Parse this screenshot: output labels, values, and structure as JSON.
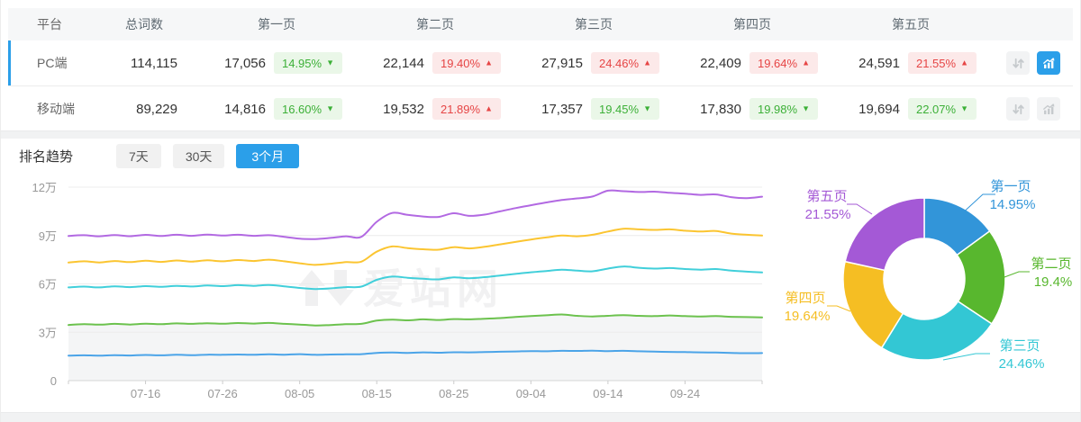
{
  "table": {
    "headers": [
      "平台",
      "总词数",
      "第一页",
      "第二页",
      "第三页",
      "第四页",
      "第五页"
    ],
    "rows": [
      {
        "platform": "PC端",
        "total": "114,115",
        "selected": true,
        "pages": [
          {
            "value": "17,056",
            "pct": "14.95%",
            "trend": "down",
            "tone": "green"
          },
          {
            "value": "22,144",
            "pct": "19.40%",
            "trend": "up",
            "tone": "red"
          },
          {
            "value": "27,915",
            "pct": "24.46%",
            "trend": "up",
            "tone": "red"
          },
          {
            "value": "22,409",
            "pct": "19.64%",
            "trend": "up",
            "tone": "red"
          },
          {
            "value": "24,591",
            "pct": "21.55%",
            "trend": "up",
            "tone": "red"
          }
        ],
        "actions": [
          {
            "icon": "sort-arrows-icon",
            "active": false
          },
          {
            "icon": "bar-chart-icon",
            "active": true
          }
        ]
      },
      {
        "platform": "移动端",
        "total": "89,229",
        "selected": false,
        "pages": [
          {
            "value": "14,816",
            "pct": "16.60%",
            "trend": "down",
            "tone": "green"
          },
          {
            "value": "19,532",
            "pct": "21.89%",
            "trend": "up",
            "tone": "red"
          },
          {
            "value": "17,357",
            "pct": "19.45%",
            "trend": "down",
            "tone": "green"
          },
          {
            "value": "17,830",
            "pct": "19.98%",
            "trend": "down",
            "tone": "green"
          },
          {
            "value": "19,694",
            "pct": "22.07%",
            "trend": "down",
            "tone": "green"
          }
        ],
        "actions": [
          {
            "icon": "sort-arrows-icon",
            "active": false
          },
          {
            "icon": "bar-chart-icon",
            "active": false
          }
        ]
      }
    ]
  },
  "trend": {
    "title": "排名趋势",
    "tabs": [
      {
        "label": "7天",
        "active": false
      },
      {
        "label": "30天",
        "active": false
      },
      {
        "label": "3个月",
        "active": true
      }
    ]
  },
  "watermark": "爱站网",
  "colors": {
    "accent_blue": "#2b9fe9",
    "badge_green": "#3cb037",
    "badge_green_bg": "#eaf7e8",
    "badge_red": "#e64545",
    "badge_red_bg": "#fce9e9",
    "grid_line": "#ececec",
    "axis_line": "#d5d5d5",
    "axis_text": "#999999"
  },
  "chart_data": [
    {
      "type": "line",
      "title": "排名趋势（3个月）",
      "unit": "万",
      "stacked": true,
      "note": "values are cumulative stacked totals, in units of 万 (10,000 keywords)",
      "x_span_days": 90,
      "point_interval_days": 2,
      "x_ticks": [
        {
          "label": "07-16",
          "day": 10
        },
        {
          "label": "07-26",
          "day": 20
        },
        {
          "label": "08-05",
          "day": 30
        },
        {
          "label": "08-15",
          "day": 40
        },
        {
          "label": "08-25",
          "day": 50
        },
        {
          "label": "09-04",
          "day": 60
        },
        {
          "label": "09-14",
          "day": 70
        },
        {
          "label": "09-24",
          "day": 80
        }
      ],
      "y_ticks": [
        {
          "label": "0",
          "value": 0
        },
        {
          "label": "3万",
          "value": 3
        },
        {
          "label": "6万",
          "value": 6
        },
        {
          "label": "9万",
          "value": 9
        },
        {
          "label": "12万",
          "value": 12
        }
      ],
      "y_max": 12,
      "area_fill_under": "第二页",
      "area_fill_color": "#f4f5f6",
      "series": [
        {
          "name": "第一页",
          "color": "#4ba4e8",
          "values": [
            1.55,
            1.57,
            1.55,
            1.58,
            1.56,
            1.59,
            1.57,
            1.6,
            1.58,
            1.61,
            1.6,
            1.62,
            1.6,
            1.63,
            1.61,
            1.64,
            1.6,
            1.62,
            1.63,
            1.64,
            1.72,
            1.74,
            1.72,
            1.75,
            1.73,
            1.76,
            1.75,
            1.77,
            1.79,
            1.81,
            1.83,
            1.82,
            1.85,
            1.84,
            1.86,
            1.83,
            1.85,
            1.82,
            1.8,
            1.78,
            1.77,
            1.75,
            1.74,
            1.72,
            1.7,
            1.71
          ]
        },
        {
          "name": "第二页",
          "color": "#6cc24e",
          "values": [
            3.45,
            3.5,
            3.47,
            3.52,
            3.48,
            3.53,
            3.5,
            3.55,
            3.52,
            3.56,
            3.53,
            3.57,
            3.54,
            3.58,
            3.52,
            3.48,
            3.42,
            3.45,
            3.5,
            3.52,
            3.72,
            3.78,
            3.74,
            3.8,
            3.76,
            3.82,
            3.8,
            3.84,
            3.88,
            3.95,
            4.0,
            4.05,
            4.1,
            4.02,
            3.98,
            4.02,
            4.06,
            4.02,
            4.0,
            4.04,
            4.0,
            3.98,
            4.0,
            3.96,
            3.94,
            3.92
          ]
        },
        {
          "name": "第三页",
          "color": "#41cfda",
          "values": [
            5.78,
            5.83,
            5.78,
            5.85,
            5.8,
            5.86,
            5.82,
            5.88,
            5.84,
            5.9,
            5.86,
            5.92,
            5.88,
            5.93,
            5.85,
            5.75,
            5.68,
            5.72,
            5.8,
            5.83,
            6.25,
            6.45,
            6.38,
            6.32,
            6.28,
            6.4,
            6.35,
            6.42,
            6.52,
            6.62,
            6.72,
            6.8,
            6.88,
            6.82,
            6.78,
            6.95,
            7.08,
            7.0,
            6.95,
            6.98,
            6.92,
            6.88,
            6.92,
            6.82,
            6.76,
            6.71
          ]
        },
        {
          "name": "第四页",
          "color": "#fbc531",
          "values": [
            7.32,
            7.4,
            7.33,
            7.42,
            7.35,
            7.44,
            7.36,
            7.45,
            7.38,
            7.46,
            7.4,
            7.48,
            7.42,
            7.5,
            7.4,
            7.28,
            7.18,
            7.25,
            7.35,
            7.38,
            8.0,
            8.32,
            8.22,
            8.15,
            8.12,
            8.28,
            8.2,
            8.3,
            8.45,
            8.6,
            8.75,
            8.88,
            9.0,
            8.95,
            9.05,
            9.25,
            9.42,
            9.38,
            9.35,
            9.38,
            9.3,
            9.25,
            9.28,
            9.12,
            9.05,
            9.0
          ]
        },
        {
          "name": "第五页",
          "color": "#b269e2",
          "values": [
            8.97,
            9.02,
            8.95,
            9.03,
            8.96,
            9.04,
            8.97,
            9.05,
            8.98,
            9.06,
            9.0,
            9.05,
            8.98,
            9.02,
            8.92,
            8.8,
            8.78,
            8.85,
            8.95,
            8.92,
            9.85,
            10.4,
            10.28,
            10.18,
            10.15,
            10.38,
            10.22,
            10.3,
            10.5,
            10.7,
            10.88,
            11.05,
            11.2,
            11.3,
            11.42,
            11.78,
            11.75,
            11.7,
            11.72,
            11.65,
            11.6,
            11.52,
            11.55,
            11.38,
            11.32,
            11.41
          ]
        }
      ]
    },
    {
      "type": "pie",
      "donut": true,
      "start_angle": "top",
      "direction": "clockwise",
      "inner_radius_ratio": 0.5,
      "labels": [
        "第一页",
        "第二页",
        "第三页",
        "第四页",
        "第五页"
      ],
      "values": [
        14.95,
        19.4,
        24.46,
        19.64,
        21.55
      ],
      "value_labels": [
        "14.95%",
        "19.4%",
        "24.46%",
        "19.64%",
        "21.55%"
      ],
      "colors": [
        "#3295d9",
        "#58b72e",
        "#33c7d4",
        "#f5be23",
        "#a459d6"
      ]
    }
  ]
}
